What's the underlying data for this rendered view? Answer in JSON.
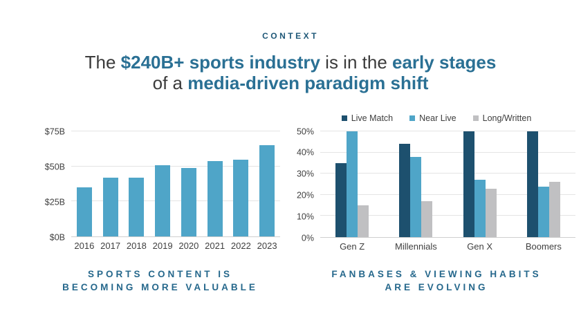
{
  "eyebrow": "CONTEXT",
  "title": {
    "line1": [
      {
        "text": "The ",
        "accent": false
      },
      {
        "text": "$240B+ sports industry",
        "accent": true
      },
      {
        "text": " is in the ",
        "accent": false
      },
      {
        "text": "early stages",
        "accent": true
      }
    ],
    "line2": [
      {
        "text": "of a ",
        "accent": false
      },
      {
        "text": "media-driven paradigm shift",
        "accent": true
      }
    ]
  },
  "colors": {
    "accent_teal": "#2a7094",
    "heading_text": "#3b3b3b",
    "eyebrow_navy": "#1f5878",
    "caption_teal": "#26688c",
    "light_blue_bar": "#4fa5c8",
    "dark_blue_bar": "#1d506e",
    "gray_bar": "#c0c0c2",
    "gridline": "#e4e4e4",
    "axis_text": "#3f3f3f"
  },
  "chart_data": [
    {
      "type": "bar",
      "categories": [
        "2016",
        "2017",
        "2018",
        "2019",
        "2020",
        "2021",
        "2022",
        "2023"
      ],
      "values": [
        35,
        42,
        42,
        51,
        49,
        54,
        55,
        65
      ],
      "bar_color": "#4fa5c8",
      "ylim": [
        0,
        75
      ],
      "yticks": [
        0,
        25,
        50,
        75
      ],
      "ytick_labels": [
        "$0B",
        "$25B",
        "$50B",
        "$75B"
      ],
      "grid": true
    },
    {
      "type": "bar",
      "categories": [
        "Gen Z",
        "Millennials",
        "Gen X",
        "Boomers"
      ],
      "series": [
        {
          "name": "Live Match",
          "color": "#1d506e",
          "values": [
            35,
            44,
            50,
            50
          ]
        },
        {
          "name": "Near Live",
          "color": "#4fa5c8",
          "values": [
            50,
            38,
            27,
            24
          ]
        },
        {
          "name": "Long/Written",
          "color": "#c0c0c2",
          "values": [
            15,
            17,
            23,
            26
          ]
        }
      ],
      "ylim": [
        0,
        50
      ],
      "yticks": [
        0,
        10,
        20,
        30,
        40,
        50
      ],
      "ytick_labels": [
        "0%",
        "10%",
        "20%",
        "30%",
        "40%",
        "50%"
      ],
      "grid": true,
      "legend_position": "top"
    }
  ],
  "captions": {
    "left": [
      "SPORTS CONTENT IS",
      "BECOMING MORE VALUABLE"
    ],
    "right": [
      "FANBASES & VIEWING HABITS",
      "ARE EVOLVING"
    ]
  }
}
